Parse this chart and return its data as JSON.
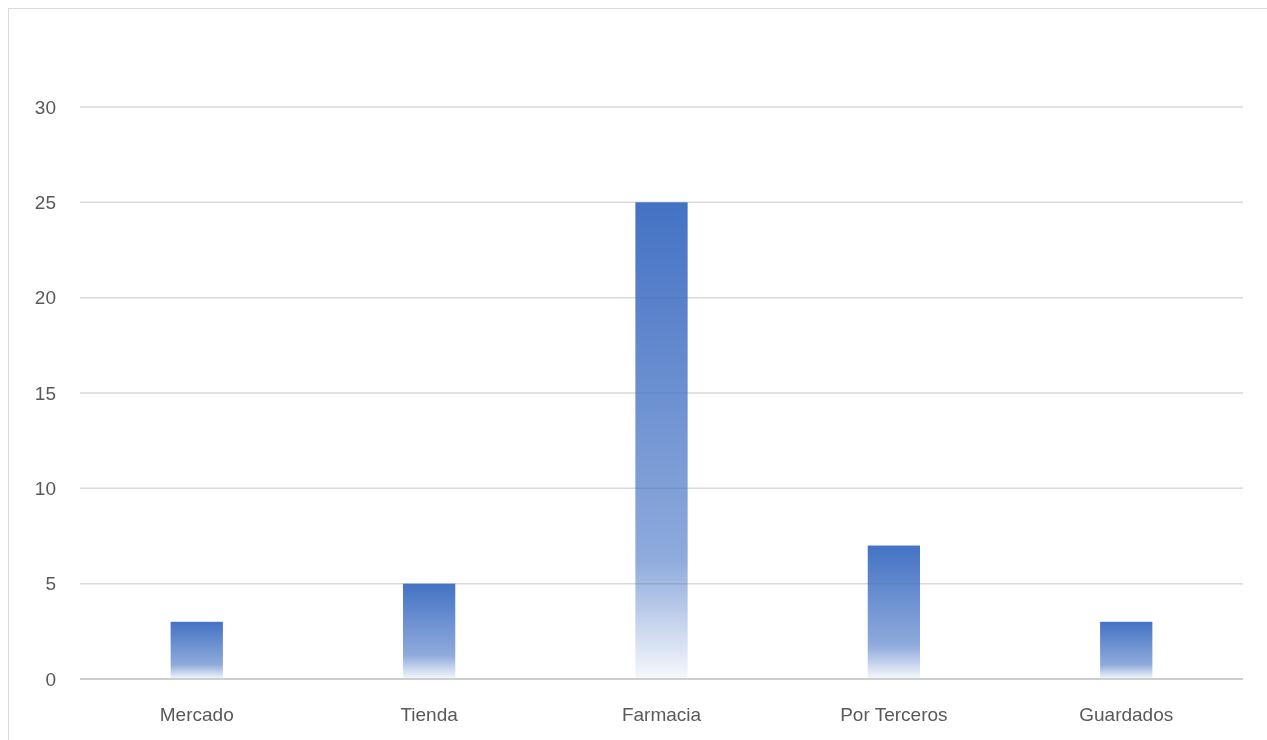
{
  "chart_data": {
    "type": "bar",
    "categories": [
      "Mercado",
      "Tienda",
      "Farmacia",
      "Por Terceros",
      "Guardados"
    ],
    "values": [
      3,
      5,
      25,
      7,
      3
    ],
    "color": "#4472c4",
    "ylim": [
      0,
      30
    ],
    "yticks": [
      0,
      5,
      10,
      15,
      20,
      25,
      30
    ],
    "grid": "y"
  }
}
